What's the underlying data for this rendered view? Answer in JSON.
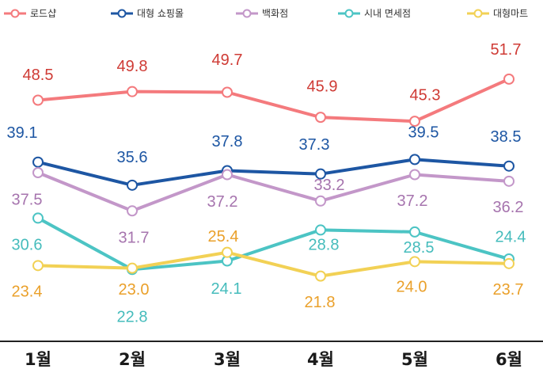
{
  "chart_data": {
    "type": "line",
    "categories": [
      "1월",
      "2월",
      "3월",
      "4월",
      "5월",
      "6월"
    ],
    "series": [
      {
        "name": "로드샵",
        "color": "#f47a7d",
        "label_color": "#cf3b35",
        "values": [
          48.5,
          49.8,
          49.7,
          45.9,
          45.3,
          51.7
        ]
      },
      {
        "name": "대형 쇼핑몰",
        "color": "#1d56a3",
        "label_color": "#1d56a3",
        "values": [
          39.1,
          35.6,
          37.8,
          37.3,
          39.5,
          38.5
        ]
      },
      {
        "name": "백화점",
        "color": "#c397c9",
        "label_color": "#a674ae",
        "values": [
          37.5,
          31.7,
          37.2,
          33.2,
          37.2,
          36.2
        ]
      },
      {
        "name": "시내 면세점",
        "color": "#4cc4c4",
        "label_color": "#45bcbc",
        "values": [
          30.6,
          22.8,
          24.1,
          28.8,
          28.5,
          24.4
        ]
      },
      {
        "name": "대형마트",
        "color": "#f2d155",
        "label_color": "#eaa02a",
        "values": [
          23.4,
          23.0,
          25.4,
          21.8,
          24.0,
          23.7
        ]
      }
    ],
    "legend_position": "top",
    "grid": false
  }
}
